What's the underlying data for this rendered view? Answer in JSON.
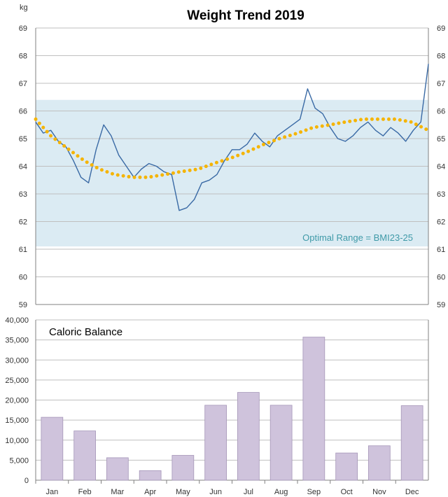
{
  "colors": {
    "band": "#dbebf3",
    "band_label": "#3f9aa8",
    "line": "#3a6aa5",
    "trend": "#f5b400",
    "bar": "#cfc3dc",
    "bar_stroke": "#a596b8",
    "grid": "#bfbfbf",
    "axis": "#808080"
  },
  "chart_data": [
    {
      "type": "line",
      "title": "Weight Trend 2019",
      "ylabel": "kg",
      "ylim": [
        59,
        69
      ],
      "yticks": [
        "59",
        "60",
        "61",
        "62",
        "63",
        "64",
        "65",
        "66",
        "67",
        "68",
        "69"
      ],
      "y2ticks": [
        "59",
        "60",
        "61",
        "62",
        "63",
        "64",
        "65",
        "66",
        "67",
        "68",
        "69"
      ],
      "x_range": [
        "2019-01-01",
        "2019-12-31"
      ],
      "band": {
        "from": 61.1,
        "to": 66.4,
        "label": "Optimal Range = BMI23-25"
      },
      "series": [
        {
          "style": "line",
          "x": [
            "2019-01-01",
            "2019-01-08",
            "2019-01-15",
            "2019-01-22",
            "2019-01-29",
            "2019-02-05",
            "2019-02-12",
            "2019-02-19",
            "2019-02-26",
            "2019-03-05",
            "2019-03-12",
            "2019-03-19",
            "2019-03-26",
            "2019-04-02",
            "2019-04-09",
            "2019-04-16",
            "2019-04-23",
            "2019-04-30",
            "2019-05-07",
            "2019-05-14",
            "2019-05-21",
            "2019-05-28",
            "2019-06-04",
            "2019-06-11",
            "2019-06-18",
            "2019-06-25",
            "2019-07-02",
            "2019-07-09",
            "2019-07-16",
            "2019-07-23",
            "2019-07-30",
            "2019-08-06",
            "2019-08-13",
            "2019-08-20",
            "2019-08-27",
            "2019-09-03",
            "2019-09-10",
            "2019-09-17",
            "2019-09-24",
            "2019-10-01",
            "2019-10-08",
            "2019-10-15",
            "2019-10-22",
            "2019-10-29",
            "2019-11-05",
            "2019-11-12",
            "2019-11-19",
            "2019-11-26",
            "2019-12-03",
            "2019-12-10",
            "2019-12-17",
            "2019-12-24",
            "2019-12-31"
          ],
          "values": [
            65.6,
            65.2,
            65.3,
            64.9,
            64.7,
            64.2,
            63.6,
            63.4,
            64.6,
            65.5,
            65.1,
            64.4,
            64.0,
            63.6,
            63.9,
            64.1,
            64.0,
            63.8,
            63.7,
            62.4,
            62.5,
            62.8,
            63.4,
            63.5,
            63.7,
            64.2,
            64.6,
            64.6,
            64.8,
            65.2,
            64.9,
            64.7,
            65.1,
            65.3,
            65.5,
            65.7,
            66.8,
            66.1,
            65.9,
            65.4,
            65.0,
            64.9,
            65.1,
            65.4,
            65.6,
            65.3,
            65.1,
            65.4,
            65.2,
            64.9,
            65.3,
            65.6,
            67.7
          ]
        },
        {
          "style": "dotted-trend",
          "x": [
            "2019-01-01",
            "2019-01-15",
            "2019-02-01",
            "2019-02-15",
            "2019-03-01",
            "2019-03-15",
            "2019-04-01",
            "2019-04-15",
            "2019-05-01",
            "2019-05-15",
            "2019-06-01",
            "2019-06-15",
            "2019-07-01",
            "2019-07-15",
            "2019-08-01",
            "2019-08-15",
            "2019-09-01",
            "2019-09-15",
            "2019-10-01",
            "2019-10-15",
            "2019-11-01",
            "2019-11-15",
            "2019-12-01",
            "2019-12-15",
            "2019-12-31"
          ],
          "values": [
            65.7,
            65.1,
            64.6,
            64.2,
            63.9,
            63.7,
            63.6,
            63.6,
            63.7,
            63.8,
            63.9,
            64.1,
            64.3,
            64.5,
            64.8,
            65.0,
            65.2,
            65.4,
            65.5,
            65.6,
            65.7,
            65.7,
            65.7,
            65.6,
            65.3
          ]
        }
      ]
    },
    {
      "type": "bar",
      "title": "Caloric Balance",
      "categories": [
        "Jan",
        "Feb",
        "Mar",
        "Apr",
        "May",
        "Jun",
        "Jul",
        "Aug",
        "Sep",
        "Oct",
        "Nov",
        "Dec"
      ],
      "values": [
        15700,
        12300,
        5600,
        2400,
        6200,
        18700,
        21900,
        18700,
        35700,
        6800,
        8600,
        18600
      ],
      "ylim": [
        0,
        40000
      ],
      "yticks": [
        "0",
        "5,000",
        "10,000",
        "15,000",
        "20,000",
        "25,000",
        "30,000",
        "35,000",
        "40,000"
      ]
    }
  ]
}
